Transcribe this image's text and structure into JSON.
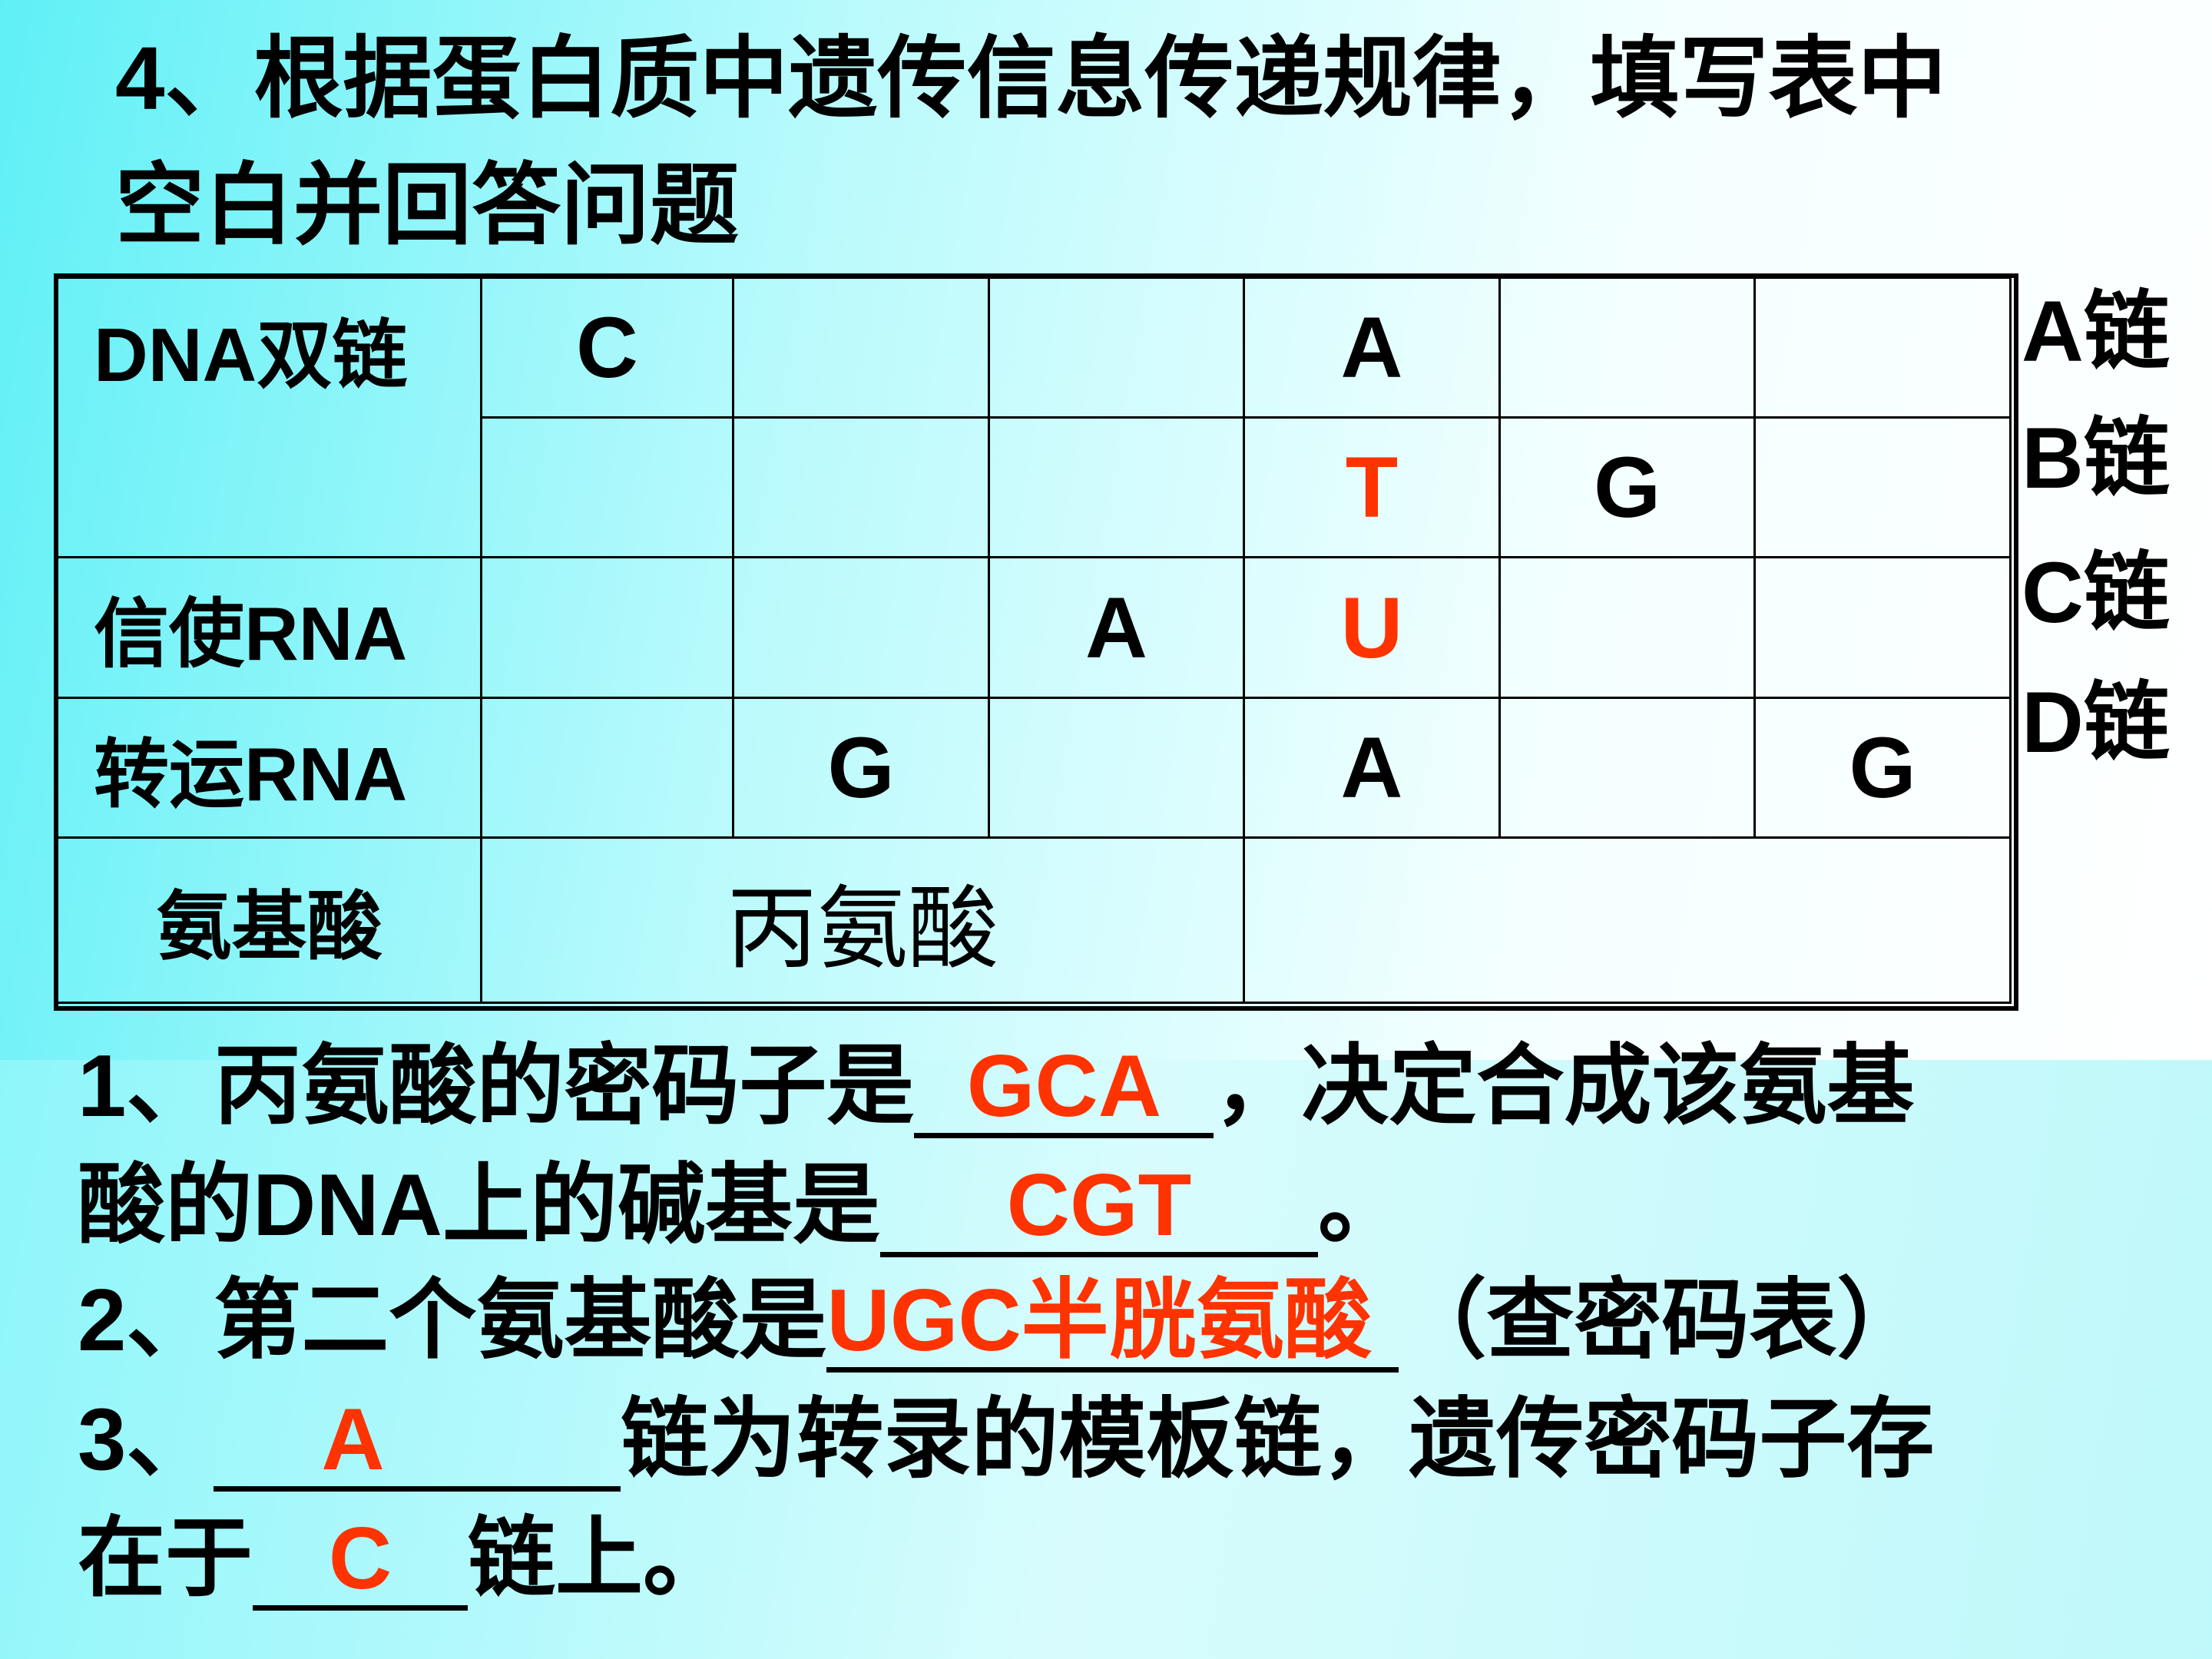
{
  "title": {
    "line1": "4、根据蛋白质中遗传信息传递规律，填写表中",
    "line2": "空白并回答问题"
  },
  "table": {
    "row_headers": [
      "DNA双链",
      "信使RNA",
      "转运RNA",
      "氨基酸"
    ],
    "dna_a": [
      "C",
      "",
      "",
      "A",
      "",
      ""
    ],
    "dna_b": [
      "",
      "",
      "",
      "T",
      "G",
      ""
    ],
    "mrna": [
      "",
      "",
      "A",
      "U",
      "",
      ""
    ],
    "trna": [
      "",
      "G",
      "",
      "A",
      "",
      "G"
    ],
    "amino_acids": [
      "丙氨酸",
      ""
    ],
    "red_cells": [
      "dna_b.3",
      "mrna.3"
    ]
  },
  "side_labels": [
    "A链",
    "B链",
    "C链",
    "D链"
  ],
  "questions": {
    "q1a": "1、丙氨酸的密码子是",
    "a1": "GCA",
    "q1b": "，决定合成该氨基",
    "q1c": "酸的DNA上的碱基是",
    "a2": "CGT",
    "q1d": "。",
    "q2a": "2、第二个氨基酸是",
    "a3": "UGC半胱氨酸",
    "q2b": "（查密码表）",
    "q3a": "3、",
    "a4": "A",
    "q3b": "链为转录的模板链，遗传密码子存",
    "q3c": "在于",
    "a5": "C",
    "q3d": "链上。"
  },
  "colors": {
    "answer": "#ff3300",
    "background": "#5ff0f6"
  }
}
